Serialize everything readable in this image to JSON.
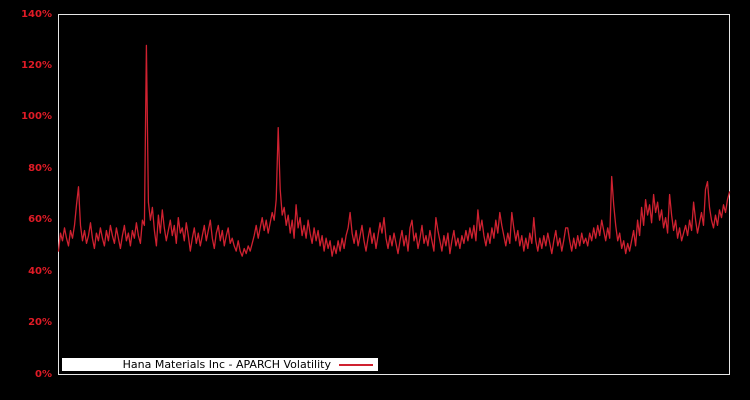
{
  "chart": {
    "legend_label": "Hana Materials Inc - APARCH Volatility",
    "colors": {
      "background": "#000000",
      "line": "#cf2130",
      "tick_label": "#e01b26",
      "plot_border": "#e6e6e6",
      "legend_bg": "#ffffff",
      "legend_text": "#000000"
    },
    "y_axis": {
      "ticks": [
        "0%",
        "20%",
        "40%",
        "60%",
        "80%",
        "100%",
        "120%",
        "140%"
      ],
      "min": 0,
      "max": 140
    }
  },
  "chart_data": {
    "type": "line",
    "title": "",
    "xlabel": "",
    "ylabel": "",
    "y_unit": "%",
    "ylim": [
      0,
      140
    ],
    "grid": false,
    "legend_position": "bottom-left",
    "series": [
      {
        "name": "Hana Materials Inc - APARCH Volatility",
        "values": [
          48,
          55,
          52,
          57,
          53,
          50,
          56,
          53,
          58,
          66,
          73,
          58,
          52,
          56,
          51,
          54,
          59,
          53,
          49,
          55,
          52,
          57,
          53,
          50,
          56,
          52,
          58,
          54,
          51,
          57,
          53,
          49,
          54,
          58,
          52,
          55,
          50,
          56,
          53,
          59,
          54,
          51,
          60,
          58,
          128,
          67,
          60,
          65,
          56,
          50,
          62,
          55,
          64,
          57,
          52,
          56,
          60,
          54,
          58,
          51,
          61,
          55,
          57,
          52,
          59,
          54,
          48,
          53,
          57,
          51,
          55,
          50,
          54,
          58,
          52,
          56,
          60,
          53,
          49,
          55,
          58,
          52,
          56,
          50,
          54,
          57,
          51,
          53,
          50,
          48,
          52,
          48,
          46,
          49,
          47,
          50,
          48,
          51,
          54,
          58,
          53,
          57,
          61,
          56,
          60,
          55,
          59,
          63,
          60,
          68,
          96,
          72,
          62,
          65,
          58,
          62,
          55,
          60,
          53,
          66,
          57,
          61,
          54,
          58,
          53,
          60,
          55,
          51,
          57,
          52,
          56,
          50,
          54,
          48,
          53,
          49,
          52,
          46,
          50,
          47,
          52,
          48,
          53,
          49,
          54,
          57,
          63,
          55,
          51,
          56,
          50,
          54,
          58,
          52,
          48,
          53,
          57,
          51,
          55,
          49,
          54,
          59,
          55,
          61,
          53,
          49,
          54,
          50,
          55,
          51,
          47,
          52,
          56,
          50,
          54,
          48,
          57,
          60,
          52,
          55,
          49,
          53,
          58,
          51,
          54,
          50,
          56,
          52,
          48,
          61,
          56,
          52,
          48,
          54,
          50,
          55,
          47,
          52,
          56,
          50,
          53,
          49,
          54,
          51,
          56,
          52,
          57,
          53,
          58,
          52,
          64,
          56,
          60,
          54,
          50,
          55,
          51,
          57,
          53,
          60,
          55,
          63,
          58,
          54,
          50,
          55,
          51,
          63,
          57,
          52,
          56,
          50,
          54,
          48,
          53,
          49,
          55,
          51,
          61,
          52,
          48,
          53,
          49,
          54,
          50,
          55,
          51,
          47,
          52,
          56,
          50,
          53,
          48,
          52,
          57,
          57,
          52,
          48,
          53,
          49,
          54,
          50,
          55,
          51,
          53,
          50,
          55,
          52,
          57,
          53,
          58,
          54,
          60,
          56,
          52,
          57,
          53,
          77,
          66,
          58,
          52,
          55,
          49,
          52,
          47,
          51,
          48,
          52,
          56,
          50,
          60,
          54,
          65,
          58,
          68,
          62,
          66,
          59,
          70,
          63,
          67,
          60,
          64,
          57,
          61,
          55,
          70,
          62,
          56,
          60,
          53,
          57,
          52,
          55,
          58,
          54,
          60,
          56,
          67,
          60,
          55,
          59,
          63,
          58,
          72,
          75,
          65,
          60,
          57,
          62,
          58,
          64,
          61,
          66,
          63,
          68,
          71
        ]
      }
    ]
  }
}
